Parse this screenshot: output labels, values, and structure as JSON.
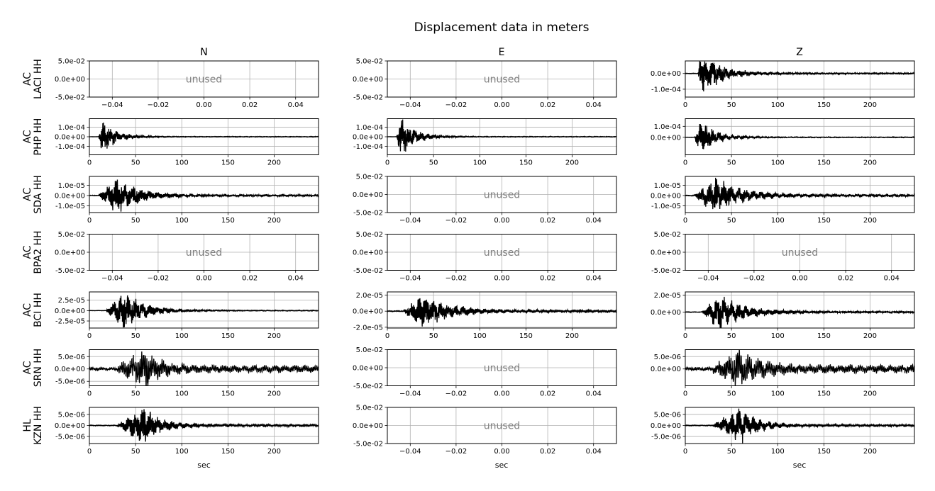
{
  "figure": {
    "title": "Displacement data in meters",
    "columns": [
      "N",
      "E",
      "Z"
    ],
    "xlabel": "sec",
    "unused_label": "unused"
  },
  "chart_data": [
    {
      "type": "line",
      "row": 0,
      "station": "AC\nLACI HH",
      "component": "N",
      "unused": true,
      "xlim": [
        -0.05,
        0.05
      ],
      "ylim": [
        -0.05,
        0.05
      ],
      "xticks": [
        -0.04,
        -0.02,
        0.0,
        0.02,
        0.04
      ],
      "xtick_labels": [
        "−0.04",
        "−0.02",
        "0.00",
        "0.02",
        "0.04"
      ],
      "yticks": [
        0.05,
        0.0,
        -0.05
      ],
      "ytick_labels": [
        "5.0e-02",
        "0.0e+00",
        "-5.0e-02"
      ],
      "grid": true
    },
    {
      "type": "line",
      "row": 0,
      "station": "AC\nLACI HH",
      "component": "E",
      "unused": true,
      "xlim": [
        -0.05,
        0.05
      ],
      "ylim": [
        -0.05,
        0.05
      ],
      "xticks": [
        -0.04,
        -0.02,
        0.0,
        0.02,
        0.04
      ],
      "xtick_labels": [
        "−0.04",
        "−0.02",
        "0.00",
        "0.02",
        "0.04"
      ],
      "yticks": [
        0.05,
        0.0,
        -0.05
      ],
      "ytick_labels": [
        "5.0e-02",
        "0.0e+00",
        "-5.0e-02"
      ],
      "grid": true
    },
    {
      "type": "line",
      "row": 0,
      "station": "AC\nLACI HH",
      "component": "Z",
      "unused": false,
      "xlim": [
        0,
        248
      ],
      "ylim": [
        -0.00015,
        8e-05
      ],
      "xticks": [
        0,
        50,
        100,
        150,
        200
      ],
      "xtick_labels": [
        "0",
        "50",
        "100",
        "150",
        "200"
      ],
      "yticks": [
        0.0,
        -0.0001
      ],
      "ytick_labels": [
        "0.0e+00",
        "-1.0e-04"
      ],
      "grid": true,
      "signal": {
        "onset": 14,
        "peak": 0.000115,
        "peak_time": 16,
        "decay": 22,
        "env_peak_time": 17,
        "base": 3e-06,
        "freq": 1.3,
        "period": 7,
        "seed": 3
      }
    },
    {
      "type": "line",
      "row": 1,
      "station": "AC\nPHP HH",
      "component": "N",
      "unused": false,
      "xlim": [
        0,
        248
      ],
      "ylim": [
        -0.00019,
        0.00019
      ],
      "xticks": [
        0,
        50,
        100,
        150,
        200
      ],
      "xtick_labels": [
        "0",
        "50",
        "100",
        "150",
        "200"
      ],
      "yticks": [
        0.0001,
        0.0,
        -0.0001
      ],
      "ytick_labels": [
        "1.0e-04",
        "0.0e+00",
        "-1.0e-04"
      ],
      "grid": true,
      "signal": {
        "onset": 10,
        "peak": 0.000155,
        "peak_time": 15,
        "decay": 14,
        "env_peak_time": 14,
        "base": 2.5e-06,
        "freq": 1.4,
        "period": 7,
        "seed": 5
      }
    },
    {
      "type": "line",
      "row": 1,
      "station": "AC\nPHP HH",
      "component": "E",
      "unused": false,
      "xlim": [
        0,
        248
      ],
      "ylim": [
        -0.00019,
        0.00019
      ],
      "xticks": [
        0,
        50,
        100,
        150,
        200
      ],
      "xtick_labels": [
        "0",
        "50",
        "100",
        "150",
        "200"
      ],
      "yticks": [
        0.0001,
        0.0,
        -0.0001
      ],
      "ytick_labels": [
        "1.0e-04",
        "0.0e+00",
        "-1.0e-04"
      ],
      "grid": true,
      "signal": {
        "onset": 10,
        "peak": 0.000175,
        "peak_time": 14,
        "decay": 15,
        "env_peak_time": 14,
        "base": 2.5e-06,
        "freq": 1.4,
        "period": 7,
        "seed": 7
      }
    },
    {
      "type": "line",
      "row": 1,
      "station": "AC\nPHP HH",
      "component": "Z",
      "unused": false,
      "xlim": [
        0,
        248
      ],
      "ylim": [
        -0.00016,
        0.00017
      ],
      "xticks": [
        0,
        50,
        100,
        150,
        200
      ],
      "xtick_labels": [
        "0",
        "50",
        "100",
        "150",
        "200"
      ],
      "yticks": [
        0.0001,
        0.0
      ],
      "ytick_labels": [
        "1.0e-04",
        "0.0e+00"
      ],
      "grid": true,
      "signal": {
        "onset": 10,
        "peak": 0.000135,
        "peak_time": 15,
        "decay": 16,
        "env_peak_time": 16,
        "base": 2.5e-06,
        "freq": 1.3,
        "period": 7,
        "seed": 9
      }
    },
    {
      "type": "line",
      "row": 2,
      "station": "AC\nSDA HH",
      "component": "N",
      "unused": false,
      "xlim": [
        0,
        248
      ],
      "ylim": [
        -1.65e-05,
        1.85e-05
      ],
      "xticks": [
        0,
        50,
        100,
        150,
        200
      ],
      "xtick_labels": [
        "0",
        "50",
        "100",
        "150",
        "200"
      ],
      "yticks": [
        1e-05,
        0.0,
        -1e-05
      ],
      "ytick_labels": [
        "1.0e-05",
        "0.0e+00",
        "-1.0e-05"
      ],
      "grid": true,
      "signal": {
        "onset": 10,
        "peak": 1.55e-05,
        "peak_time": 32,
        "decay": 22,
        "env_peak_time": 30,
        "base": 7e-07,
        "freq": 0.9,
        "period": 9,
        "seed": 11
      }
    },
    {
      "type": "line",
      "row": 2,
      "station": "AC\nSDA HH",
      "component": "E",
      "unused": true,
      "xlim": [
        -0.05,
        0.05
      ],
      "ylim": [
        -0.05,
        0.05
      ],
      "xticks": [
        -0.04,
        -0.02,
        0.0,
        0.02,
        0.04
      ],
      "xtick_labels": [
        "−0.04",
        "−0.02",
        "0.00",
        "0.02",
        "0.04"
      ],
      "yticks": [
        0.05,
        0.0,
        -0.05
      ],
      "ytick_labels": [
        "5.0e-02",
        "0.0e+00",
        "-5.0e-02"
      ],
      "grid": true
    },
    {
      "type": "line",
      "row": 2,
      "station": "AC\nSDA HH",
      "component": "Z",
      "unused": false,
      "xlim": [
        0,
        248
      ],
      "ylim": [
        -1.65e-05,
        1.85e-05
      ],
      "xticks": [
        0,
        50,
        100,
        150,
        200
      ],
      "xtick_labels": [
        "0",
        "50",
        "100",
        "150",
        "200"
      ],
      "yticks": [
        1e-05,
        0.0,
        -1e-05
      ],
      "ytick_labels": [
        "1.0e-05",
        "0.0e+00",
        "-1.0e-05"
      ],
      "grid": true,
      "signal": {
        "onset": 10,
        "peak": 1.45e-05,
        "peak_time": 34,
        "decay": 28,
        "env_peak_time": 32,
        "base": 9e-07,
        "freq": 0.8,
        "period": 8,
        "seed": 13
      }
    },
    {
      "type": "line",
      "row": 3,
      "station": "AC\nBPA2 HH",
      "component": "N",
      "unused": true,
      "xlim": [
        -0.05,
        0.05
      ],
      "ylim": [
        -0.05,
        0.05
      ],
      "xticks": [
        -0.04,
        -0.02,
        0.0,
        0.02,
        0.04
      ],
      "xtick_labels": [
        "−0.04",
        "−0.02",
        "0.00",
        "0.02",
        "0.04"
      ],
      "yticks": [
        0.05,
        0.0,
        -0.05
      ],
      "ytick_labels": [
        "5.0e-02",
        "0.0e+00",
        "-5.0e-02"
      ],
      "grid": true
    },
    {
      "type": "line",
      "row": 3,
      "station": "AC\nBPA2 HH",
      "component": "E",
      "unused": true,
      "xlim": [
        -0.05,
        0.05
      ],
      "ylim": [
        -0.05,
        0.05
      ],
      "xticks": [
        -0.04,
        -0.02,
        0.0,
        0.02,
        0.04
      ],
      "xtick_labels": [
        "−0.04",
        "−0.02",
        "0.00",
        "0.02",
        "0.04"
      ],
      "yticks": [
        0.05,
        0.0,
        -0.05
      ],
      "ytick_labels": [
        "5.0e-02",
        "0.0e+00",
        "-5.0e-02"
      ],
      "grid": true
    },
    {
      "type": "line",
      "row": 3,
      "station": "AC\nBPA2 HH",
      "component": "Z",
      "unused": true,
      "xlim": [
        -0.05,
        0.05
      ],
      "ylim": [
        -0.05,
        0.05
      ],
      "xticks": [
        -0.04,
        -0.02,
        0.0,
        0.02,
        0.04
      ],
      "xtick_labels": [
        "−0.04",
        "−0.02",
        "0.00",
        "0.02",
        "0.04"
      ],
      "yticks": [
        0.05,
        0.0,
        -0.05
      ],
      "ytick_labels": [
        "5.0e-02",
        "0.0e+00",
        "-5.0e-02"
      ],
      "grid": true
    },
    {
      "type": "line",
      "row": 4,
      "station": "AC\nBCI HH",
      "component": "N",
      "unused": false,
      "xlim": [
        0,
        248
      ],
      "ylim": [
        -4.2e-05,
        4.5e-05
      ],
      "xticks": [
        0,
        50,
        100,
        150,
        200
      ],
      "xtick_labels": [
        "0",
        "50",
        "100",
        "150",
        "200"
      ],
      "yticks": [
        2.5e-05,
        0.0,
        -2.5e-05
      ],
      "ytick_labels": [
        "2.5e-05",
        "0.0e+00",
        "-2.5e-05"
      ],
      "grid": true,
      "signal": {
        "onset": 18,
        "peak": 3.8e-05,
        "peak_time": 39,
        "decay": 22,
        "env_peak_time": 38,
        "base": 8e-07,
        "freq": 1.0,
        "period": 8,
        "seed": 17
      }
    },
    {
      "type": "line",
      "row": 4,
      "station": "AC\nBCI HH",
      "component": "E",
      "unused": false,
      "xlim": [
        0,
        248
      ],
      "ylim": [
        -2.1e-05,
        2.4e-05
      ],
      "xticks": [
        0,
        50,
        100,
        150,
        200
      ],
      "xtick_labels": [
        "0",
        "50",
        "100",
        "150",
        "200"
      ],
      "yticks": [
        2e-05,
        0.0,
        -2e-05
      ],
      "ytick_labels": [
        "2.0e-05",
        "0.0e+00",
        "-2.0e-05"
      ],
      "grid": true,
      "signal": {
        "onset": 18,
        "peak": 1.9e-05,
        "peak_time": 42,
        "decay": 26,
        "env_peak_time": 40,
        "base": 1.2e-06,
        "freq": 1.0,
        "period": 8,
        "seed": 19
      }
    },
    {
      "type": "line",
      "row": 4,
      "station": "AC\nBCI HH",
      "component": "Z",
      "unused": false,
      "xlim": [
        0,
        248
      ],
      "ylim": [
        -1.9e-05,
        2.4e-05
      ],
      "xticks": [
        0,
        50,
        100,
        150,
        200
      ],
      "xtick_labels": [
        "0",
        "50",
        "100",
        "150",
        "200"
      ],
      "yticks": [
        2e-05,
        0.0
      ],
      "ytick_labels": [
        "2.0e-05",
        "0.0e+00"
      ],
      "grid": true,
      "signal": {
        "onset": 18,
        "peak": 1.8e-05,
        "peak_time": 38,
        "decay": 26,
        "env_peak_time": 38,
        "base": 8e-07,
        "freq": 1.0,
        "period": 8,
        "seed": 23
      }
    },
    {
      "type": "line",
      "row": 5,
      "station": "AC\nSRN HH",
      "component": "N",
      "unused": false,
      "xlim": [
        0,
        248
      ],
      "ylim": [
        -6.8e-06,
        7.8e-06
      ],
      "xticks": [
        0,
        50,
        100,
        150,
        200
      ],
      "xtick_labels": [
        "0",
        "50",
        "100",
        "150",
        "200"
      ],
      "yticks": [
        5e-06,
        0.0,
        -5e-06
      ],
      "ytick_labels": [
        "5.0e-06",
        "0.0e+00",
        "-5.0e-06"
      ],
      "grid": true,
      "signal": {
        "onset": 30,
        "peak": 6.5e-06,
        "peak_time": 62,
        "decay": 18,
        "env_peak_time": 60,
        "base": 1.2e-06,
        "freq": 0.55,
        "period": 11,
        "seed": 29
      }
    },
    {
      "type": "line",
      "row": 5,
      "station": "AC\nSRN HH",
      "component": "E",
      "unused": true,
      "xlim": [
        -0.05,
        0.05
      ],
      "ylim": [
        -0.05,
        0.05
      ],
      "xticks": [
        -0.04,
        -0.02,
        0.0,
        0.02,
        0.04
      ],
      "xtick_labels": [
        "−0.04",
        "−0.02",
        "0.00",
        "0.02",
        "0.04"
      ],
      "yticks": [
        0.05,
        0.0,
        -0.05
      ],
      "ytick_labels": [
        "5.0e-02",
        "0.0e+00",
        "-5.0e-02"
      ],
      "grid": true
    },
    {
      "type": "line",
      "row": 5,
      "station": "AC\nSRN HH",
      "component": "Z",
      "unused": false,
      "xlim": [
        0,
        248
      ],
      "ylim": [
        -6.8e-06,
        7.8e-06
      ],
      "xticks": [
        0,
        50,
        100,
        150,
        200
      ],
      "xtick_labels": [
        "0",
        "50",
        "100",
        "150",
        "200"
      ],
      "yticks": [
        5e-06,
        0.0
      ],
      "ytick_labels": [
        "5.0e-06",
        "0.0e+00"
      ],
      "grid": true,
      "signal": {
        "onset": 30,
        "peak": 6.5e-06,
        "peak_time": 62,
        "decay": 22,
        "env_peak_time": 58,
        "base": 1.4e-06,
        "freq": 0.55,
        "period": 11,
        "seed": 31
      }
    },
    {
      "type": "line",
      "row": 6,
      "station": "HL\nKZN HH",
      "component": "N",
      "unused": false,
      "xlim": [
        0,
        248
      ],
      "ylim": [
        -8.2e-06,
        8.2e-06
      ],
      "xticks": [
        0,
        50,
        100,
        150,
        200
      ],
      "xtick_labels": [
        "0",
        "50",
        "100",
        "150",
        "200"
      ],
      "yticks": [
        5e-06,
        0.0,
        -5e-06
      ],
      "ytick_labels": [
        "5.0e-06",
        "0.0e+00",
        "-5.0e-06"
      ],
      "grid": true,
      "signal": {
        "onset": 30,
        "peak": 6.8e-06,
        "peak_time": 62,
        "decay": 18,
        "env_peak_time": 60,
        "base": 4e-07,
        "freq": 0.9,
        "period": 8,
        "seed": 37
      }
    },
    {
      "type": "line",
      "row": 6,
      "station": "HL\nKZN HH",
      "component": "E",
      "unused": true,
      "xlim": [
        -0.05,
        0.05
      ],
      "ylim": [
        -0.05,
        0.05
      ],
      "xticks": [
        -0.04,
        -0.02,
        0.0,
        0.02,
        0.04
      ],
      "xtick_labels": [
        "−0.04",
        "−0.02",
        "0.00",
        "0.02",
        "0.04"
      ],
      "yticks": [
        0.05,
        0.0,
        -0.05
      ],
      "ytick_labels": [
        "5.0e-02",
        "0.0e+00",
        "-5.0e-02"
      ],
      "grid": true
    },
    {
      "type": "line",
      "row": 6,
      "station": "HL\nKZN HH",
      "component": "Z",
      "unused": false,
      "xlim": [
        0,
        248
      ],
      "ylim": [
        -8.2e-06,
        8.2e-06
      ],
      "xticks": [
        0,
        50,
        100,
        150,
        200
      ],
      "xtick_labels": [
        "0",
        "50",
        "100",
        "150",
        "200"
      ],
      "yticks": [
        5e-06,
        0.0,
        -5e-06
      ],
      "ytick_labels": [
        "5.0e-06",
        "0.0e+00",
        "-5.0e-06"
      ],
      "grid": true,
      "signal": {
        "onset": 30,
        "peak": 6.8e-06,
        "peak_time": 62,
        "decay": 18,
        "env_peak_time": 60,
        "base": 4e-07,
        "freq": 0.9,
        "period": 8,
        "seed": 41
      }
    }
  ]
}
